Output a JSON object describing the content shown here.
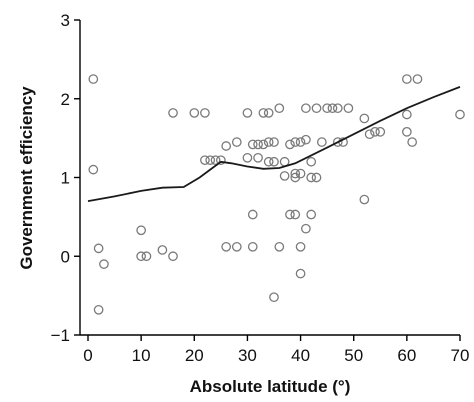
{
  "chart_data": {
    "type": "scatter",
    "title": "",
    "xlabel": "Absolute latitude (°)",
    "ylabel": "Government efficiency",
    "xlim": [
      0,
      70
    ],
    "ylim": [
      -1,
      3
    ],
    "xticks": [
      "0",
      "10",
      "20",
      "30",
      "40",
      "50",
      "60",
      "70"
    ],
    "yticks": [
      "−1",
      "0",
      "1",
      "2",
      "3"
    ],
    "grid": false,
    "legend": "none",
    "series": [
      {
        "type": "scatter",
        "marker": "open-circle",
        "color": "#7a7a7a",
        "points": [
          [
            1,
            2.25
          ],
          [
            1,
            1.1
          ],
          [
            2,
            0.1
          ],
          [
            2,
            -0.68
          ],
          [
            3,
            -0.1
          ],
          [
            10,
            0.33
          ],
          [
            10,
            0
          ],
          [
            11,
            0
          ],
          [
            14,
            0.08
          ],
          [
            16,
            1.82
          ],
          [
            16,
            0
          ],
          [
            20,
            1.82
          ],
          [
            22,
            1.82
          ],
          [
            22,
            1.22
          ],
          [
            23,
            1.22
          ],
          [
            24,
            1.22
          ],
          [
            25,
            1.22
          ],
          [
            26,
            1.4
          ],
          [
            26,
            0.12
          ],
          [
            28,
            0.12
          ],
          [
            28,
            1.45
          ],
          [
            30,
            1.82
          ],
          [
            30,
            1.25
          ],
          [
            31,
            0.53
          ],
          [
            31,
            0.12
          ],
          [
            31,
            1.42
          ],
          [
            32,
            1.25
          ],
          [
            32,
            1.42
          ],
          [
            33,
            1.82
          ],
          [
            33,
            1.42
          ],
          [
            34,
            1.82
          ],
          [
            34,
            1.2
          ],
          [
            34,
            1.45
          ],
          [
            35,
            1.45
          ],
          [
            35,
            1.2
          ],
          [
            35,
            -0.52
          ],
          [
            36,
            1.88
          ],
          [
            36,
            0.12
          ],
          [
            37,
            1.2
          ],
          [
            37,
            1.02
          ],
          [
            38,
            1.42
          ],
          [
            38,
            0.53
          ],
          [
            39,
            1.45
          ],
          [
            39,
            1.05
          ],
          [
            39,
            1.0
          ],
          [
            39,
            0.53
          ],
          [
            40,
            1.05
          ],
          [
            40,
            1.45
          ],
          [
            40,
            0.12
          ],
          [
            40,
            -0.22
          ],
          [
            41,
            1.88
          ],
          [
            41,
            1.48
          ],
          [
            41,
            0.35
          ],
          [
            42,
            1.2
          ],
          [
            42,
            1.0
          ],
          [
            42,
            0.53
          ],
          [
            43,
            1.0
          ],
          [
            43,
            1.88
          ],
          [
            44,
            1.45
          ],
          [
            45,
            1.88
          ],
          [
            46,
            1.88
          ],
          [
            47,
            1.45
          ],
          [
            47,
            1.88
          ],
          [
            48,
            1.45
          ],
          [
            49,
            1.88
          ],
          [
            52,
            1.75
          ],
          [
            52,
            0.72
          ],
          [
            53,
            1.55
          ],
          [
            54,
            1.58
          ],
          [
            55,
            1.58
          ],
          [
            60,
            2.25
          ],
          [
            60,
            1.8
          ],
          [
            60,
            1.58
          ],
          [
            61,
            1.45
          ],
          [
            62,
            2.25
          ],
          [
            70,
            1.8
          ]
        ]
      },
      {
        "type": "line",
        "color": "#1a1a1a",
        "points": [
          [
            0,
            0.7
          ],
          [
            5,
            0.76
          ],
          [
            10,
            0.83
          ],
          [
            14,
            0.87
          ],
          [
            18,
            0.88
          ],
          [
            21,
            1.0
          ],
          [
            23,
            1.1
          ],
          [
            25,
            1.2
          ],
          [
            27,
            1.18
          ],
          [
            30,
            1.14
          ],
          [
            33,
            1.11
          ],
          [
            36,
            1.12
          ],
          [
            39,
            1.18
          ],
          [
            42,
            1.28
          ],
          [
            45,
            1.38
          ],
          [
            50,
            1.55
          ],
          [
            55,
            1.72
          ],
          [
            60,
            1.88
          ],
          [
            65,
            2.02
          ],
          [
            70,
            2.15
          ]
        ]
      }
    ]
  }
}
